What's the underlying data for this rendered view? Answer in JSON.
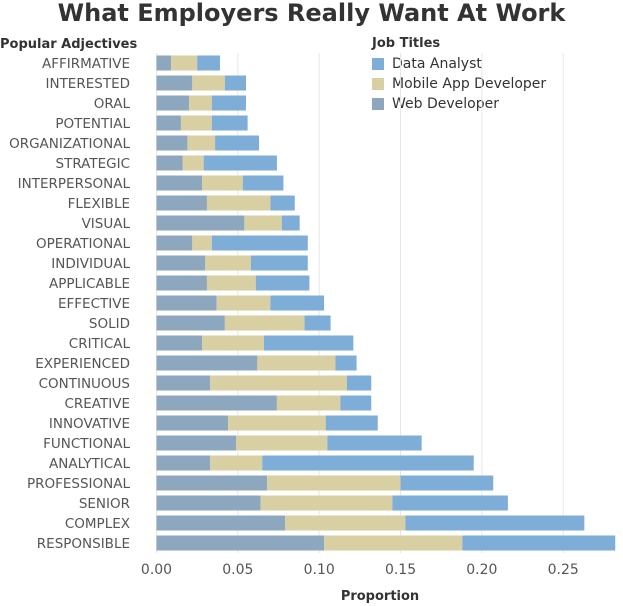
{
  "chart_data": {
    "type": "bar",
    "orientation": "horizontal",
    "stacked": true,
    "title": "What Employers Really Want At Work",
    "ylabel": "Popular Adjectives",
    "xlabel": "Proportion",
    "xlim": [
      -0.012,
      0.28
    ],
    "xticks": [
      "0.00",
      "0.05",
      "0.10",
      "0.15",
      "0.20",
      "0.25"
    ],
    "xtick_values": [
      0,
      0.05,
      0.1,
      0.15,
      0.2,
      0.25
    ],
    "grid": true,
    "legend_title": "Job Titles",
    "legend_position": "top-right",
    "legend": [
      {
        "name": "Data Analyst",
        "color": "#7eaed8"
      },
      {
        "name": "Mobile App Developer",
        "color": "#d8cfa2"
      },
      {
        "name": "Web Developer",
        "color": "#8da7be"
      }
    ],
    "categories": [
      "AFFIRMATIVE",
      "INTERESTED",
      "ORAL",
      "POTENTIAL",
      "ORGANIZATIONAL",
      "STRATEGIC",
      "INTERPERSONAL",
      "FLEXIBLE",
      "VISUAL",
      "OPERATIONAL",
      "INDIVIDUAL",
      "APPLICABLE",
      "EFFECTIVE",
      "SOLID",
      "CRITICAL",
      "EXPERIENCED",
      "CONTINUOUS",
      "CREATIVE",
      "INNOVATIVE",
      "FUNCTIONAL",
      "ANALYTICAL",
      "PROFESSIONAL",
      "SENIOR",
      "COMPLEX",
      "RESPONSIBLE"
    ],
    "series": [
      {
        "name": "Web Developer",
        "values": [
          0.009,
          0.022,
          0.02,
          0.015,
          0.019,
          0.016,
          0.028,
          0.031,
          0.054,
          0.022,
          0.03,
          0.031,
          0.037,
          0.042,
          0.028,
          0.062,
          0.033,
          0.074,
          0.044,
          0.049,
          0.033,
          0.068,
          0.064,
          0.079,
          0.103
        ]
      },
      {
        "name": "Mobile App Developer",
        "values": [
          0.016,
          0.02,
          0.014,
          0.019,
          0.017,
          0.013,
          0.025,
          0.039,
          0.023,
          0.012,
          0.028,
          0.03,
          0.033,
          0.049,
          0.038,
          0.048,
          0.084,
          0.039,
          0.06,
          0.056,
          0.032,
          0.082,
          0.081,
          0.074,
          0.085
        ]
      },
      {
        "name": "Data Analyst",
        "values": [
          0.014,
          0.013,
          0.021,
          0.022,
          0.027,
          0.045,
          0.025,
          0.015,
          0.011,
          0.059,
          0.035,
          0.033,
          0.033,
          0.016,
          0.055,
          0.013,
          0.015,
          0.019,
          0.032,
          0.058,
          0.13,
          0.057,
          0.071,
          0.11,
          0.094
        ]
      }
    ]
  }
}
